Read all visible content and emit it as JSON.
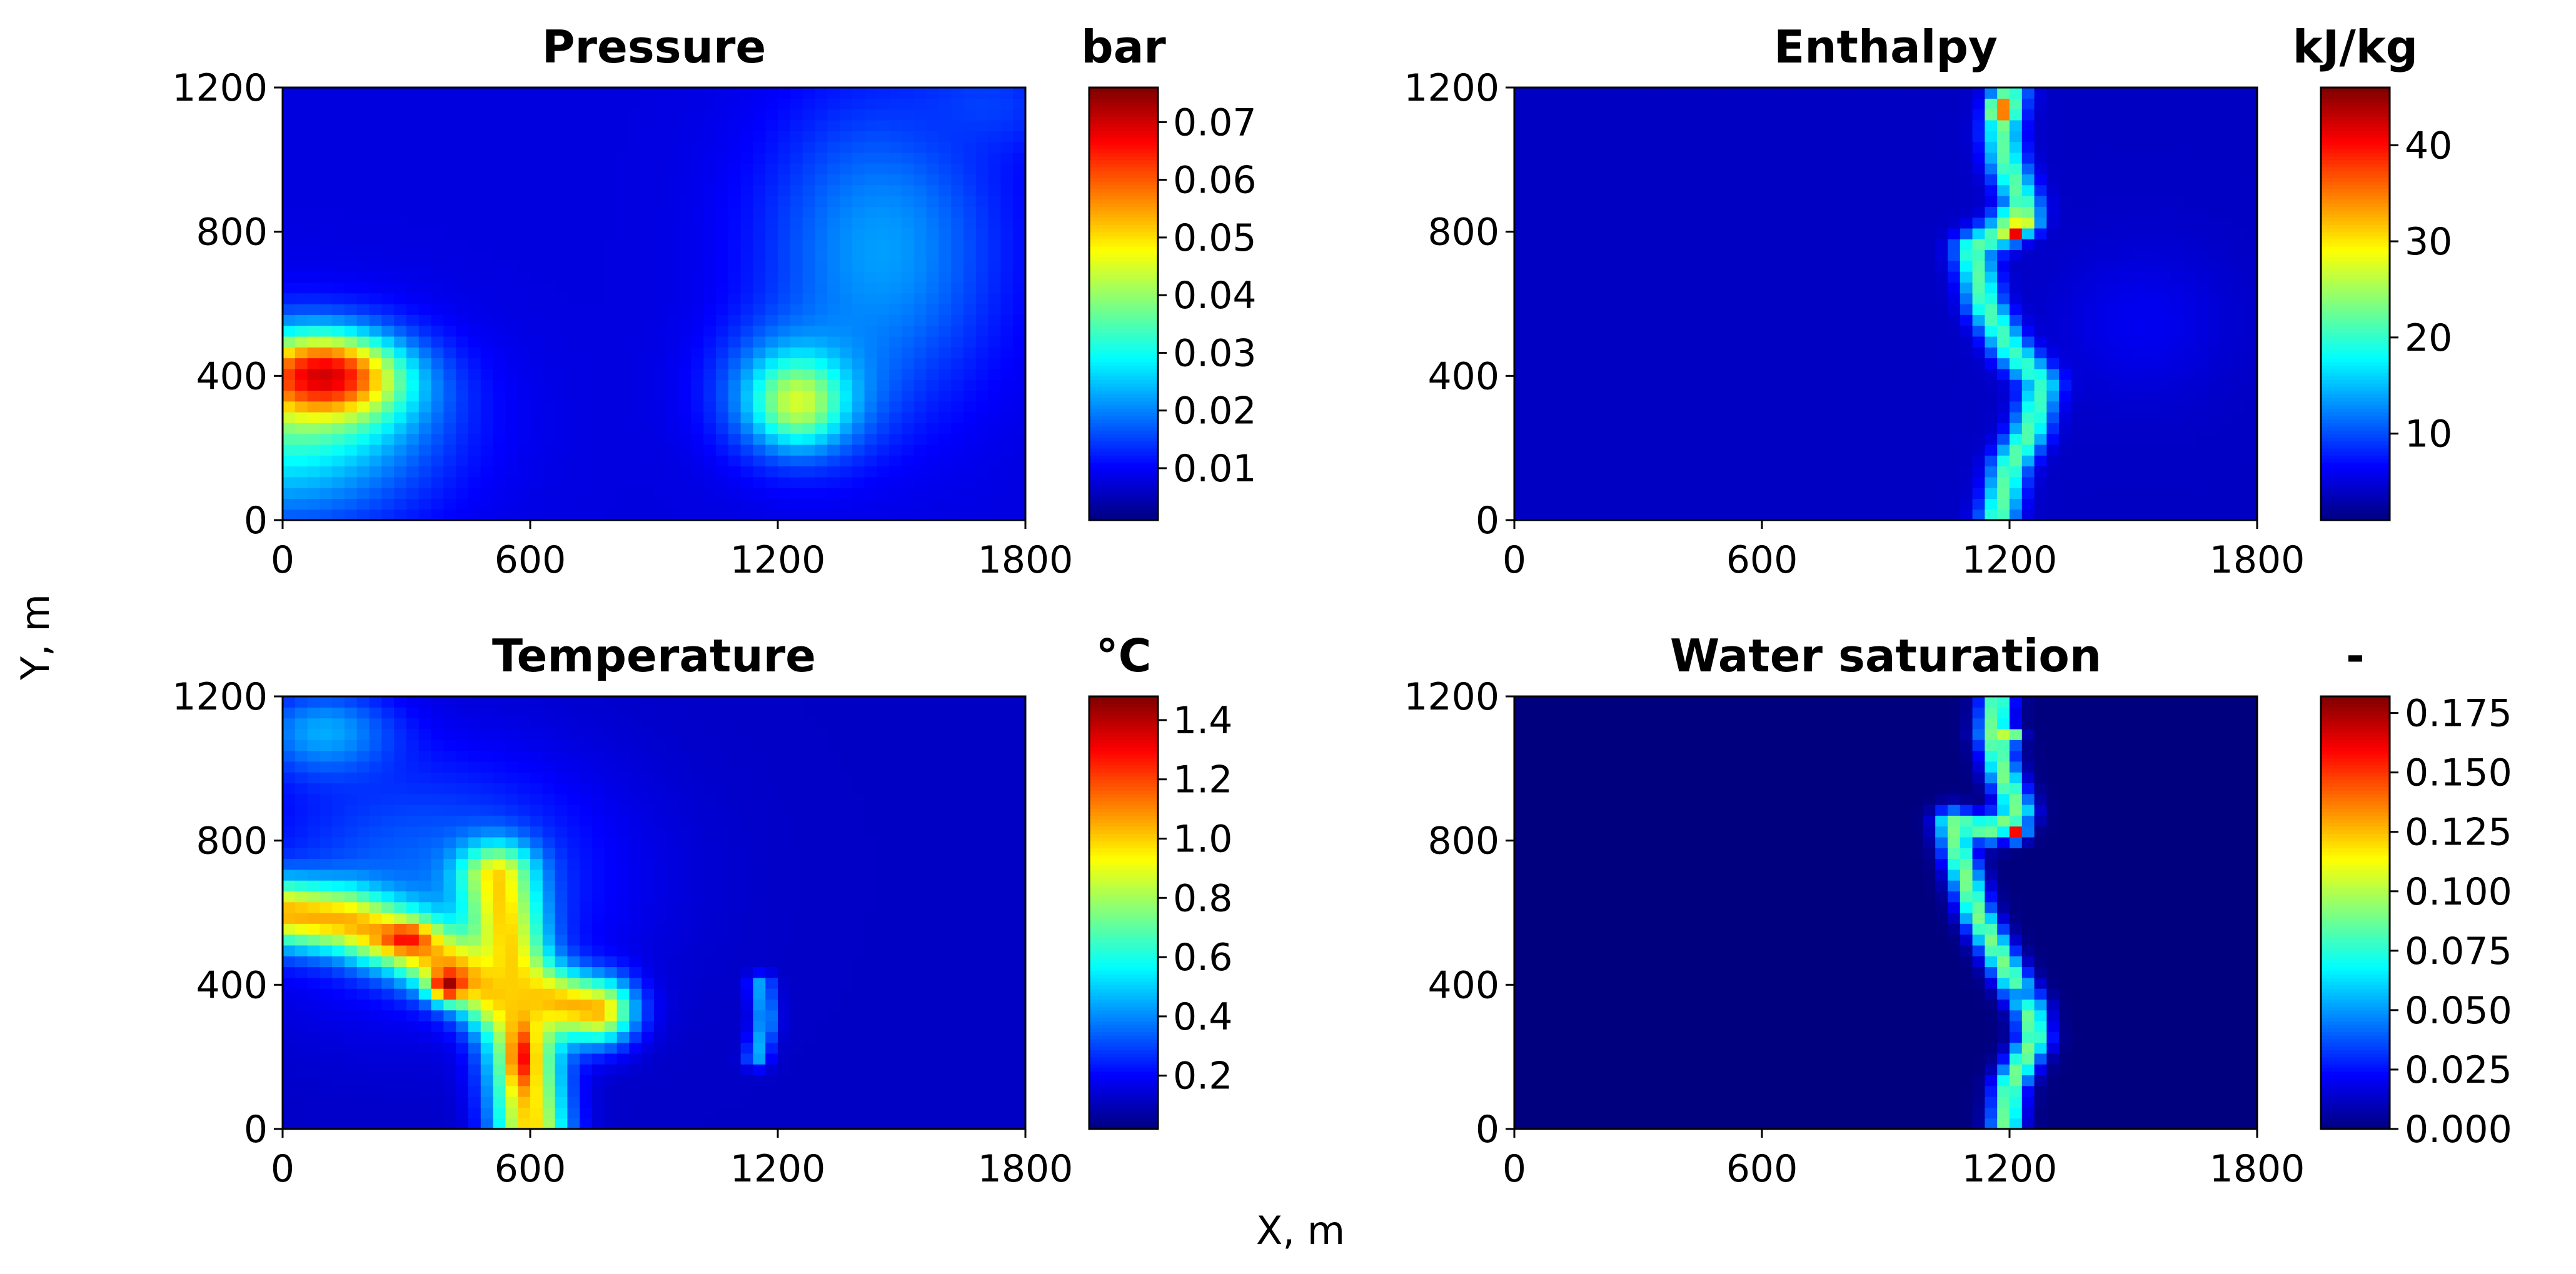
{
  "figure": {
    "global_ylabel": "Y, m",
    "global_xlabel": "X, m"
  },
  "colors": {
    "jet": [
      "#00007f",
      "#0000ff",
      "#007fff",
      "#00ffff",
      "#7fff7f",
      "#ffff00",
      "#ff7f00",
      "#ff0000",
      "#7f0000"
    ],
    "axis": "#000000",
    "background": "#ffffff"
  },
  "chart_data": [
    {
      "type": "heatmap",
      "title": "Pressure",
      "unit": "bar",
      "xlabel": "X, m",
      "ylabel": "Y, m",
      "xlim": [
        0,
        1800
      ],
      "ylim": [
        0,
        1200
      ],
      "xticks": [
        0,
        600,
        1200,
        1800
      ],
      "xtick_labels": [
        "0",
        "600",
        "1200",
        "1800"
      ],
      "yticks": [
        0,
        400,
        800,
        1200
      ],
      "ytick_labels": [
        "0",
        "400",
        "800",
        "1200"
      ],
      "colorbar_range": [
        0.001,
        0.076
      ],
      "colorbar_ticks": [
        0.01,
        0.02,
        0.03,
        0.04,
        0.05,
        0.06,
        0.07
      ],
      "colorbar_tick_labels": [
        "0.01",
        "0.02",
        "0.03",
        "0.04",
        "0.05",
        "0.06",
        "0.07"
      ],
      "background_value": 0.008,
      "features": [
        {
          "kind": "blob",
          "x": 0,
          "y": 250,
          "rx": 520,
          "ry": 380,
          "value": 0.03
        },
        {
          "kind": "blob",
          "x": 80,
          "y": 380,
          "rx": 320,
          "ry": 200,
          "value": 0.05
        },
        {
          "kind": "blob",
          "x": 100,
          "y": 400,
          "rx": 200,
          "ry": 130,
          "value": 0.07
        },
        {
          "kind": "blob",
          "x": 1450,
          "y": 750,
          "rx": 420,
          "ry": 620,
          "value": 0.022
        },
        {
          "kind": "blob",
          "x": 1250,
          "y": 350,
          "rx": 260,
          "ry": 260,
          "value": 0.03
        },
        {
          "kind": "blob",
          "x": 1250,
          "y": 330,
          "rx": 130,
          "ry": 140,
          "value": 0.045
        },
        {
          "kind": "blob",
          "x": 1700,
          "y": 1150,
          "rx": 280,
          "ry": 200,
          "value": 0.015
        }
      ]
    },
    {
      "type": "heatmap",
      "title": "Enthalpy",
      "unit": "kJ/kg",
      "xlabel": "X, m",
      "ylabel": "Y, m",
      "xlim": [
        0,
        1800
      ],
      "ylim": [
        0,
        1200
      ],
      "xticks": [
        0,
        600,
        1200,
        1800
      ],
      "xtick_labels": [
        "0",
        "600",
        "1200",
        "1800"
      ],
      "yticks": [
        0,
        400,
        800,
        1200
      ],
      "ytick_labels": [
        "0",
        "400",
        "800",
        "1200"
      ],
      "colorbar_range": [
        1,
        46
      ],
      "colorbar_ticks": [
        10,
        20,
        30,
        40
      ],
      "colorbar_tick_labels": [
        "10",
        "20",
        "30",
        "40"
      ],
      "background_value": 4,
      "features": [
        {
          "kind": "path",
          "points": [
            [
              1170,
              0
            ],
            [
              1200,
              150
            ],
            [
              1250,
              250
            ],
            [
              1280,
              380
            ],
            [
              1200,
              480
            ],
            [
              1140,
              600
            ],
            [
              1110,
              750
            ],
            [
              1180,
              800
            ],
            [
              1230,
              880
            ],
            [
              1190,
              1000
            ],
            [
              1180,
              1080
            ],
            [
              1200,
              1200
            ]
          ],
          "value": 22,
          "width": 45
        },
        {
          "kind": "blob",
          "x": 1240,
          "y": 830,
          "rx": 50,
          "ry": 50,
          "value": 28
        },
        {
          "kind": "blob",
          "x": 1180,
          "y": 1140,
          "rx": 40,
          "ry": 40,
          "value": 40
        },
        {
          "kind": "blob",
          "x": 1210,
          "y": 800,
          "rx": 30,
          "ry": 30,
          "value": 45
        },
        {
          "kind": "blob",
          "x": 1520,
          "y": 550,
          "rx": 300,
          "ry": 300,
          "value": 6
        }
      ]
    },
    {
      "type": "heatmap",
      "title": "Temperature",
      "unit": "°C",
      "xlabel": "X, m",
      "ylabel": "Y, m",
      "xlim": [
        0,
        1800
      ],
      "ylim": [
        0,
        1200
      ],
      "xticks": [
        0,
        600,
        1200,
        1800
      ],
      "xtick_labels": [
        "0",
        "600",
        "1200",
        "1800"
      ],
      "yticks": [
        0,
        400,
        800,
        1200
      ],
      "ytick_labels": [
        "0",
        "400",
        "800",
        "1200"
      ],
      "colorbar_range": [
        0.02,
        1.48
      ],
      "colorbar_ticks": [
        0.2,
        0.4,
        0.6,
        0.8,
        1.0,
        1.2,
        1.4
      ],
      "colorbar_tick_labels": [
        "0.2",
        "0.4",
        "0.6",
        "0.8",
        "1.0",
        "1.2",
        "1.4"
      ],
      "background_value": 0.12,
      "features": [
        {
          "kind": "blob",
          "x": 350,
          "y": 700,
          "rx": 650,
          "ry": 520,
          "value": 0.35
        },
        {
          "kind": "blob",
          "x": 100,
          "y": 1100,
          "rx": 250,
          "ry": 180,
          "value": 0.45
        },
        {
          "kind": "path",
          "points": [
            [
              0,
              600
            ],
            [
              150,
              580
            ],
            [
              300,
              520
            ],
            [
              420,
              450
            ],
            [
              520,
              380
            ],
            [
              620,
              360
            ],
            [
              760,
              330
            ]
          ],
          "value": 1.05,
          "width": 90
        },
        {
          "kind": "path",
          "points": [
            [
              520,
              700
            ],
            [
              540,
              550
            ],
            [
              560,
              400
            ],
            [
              580,
              250
            ],
            [
              600,
              0
            ]
          ],
          "value": 1.0,
          "width": 90
        },
        {
          "kind": "blob",
          "x": 400,
          "y": 400,
          "rx": 60,
          "ry": 60,
          "value": 1.45
        },
        {
          "kind": "blob",
          "x": 300,
          "y": 530,
          "rx": 80,
          "ry": 50,
          "value": 1.3
        },
        {
          "kind": "blob",
          "x": 580,
          "y": 200,
          "rx": 40,
          "ry": 120,
          "value": 1.3
        },
        {
          "kind": "path",
          "points": [
            [
              1150,
              200
            ],
            [
              1170,
              300
            ],
            [
              1160,
              400
            ]
          ],
          "value": 0.45,
          "width": 30
        }
      ]
    },
    {
      "type": "heatmap",
      "title": "Water saturation",
      "unit": "-",
      "xlabel": "X, m",
      "ylabel": "Y, m",
      "xlim": [
        0,
        1800
      ],
      "ylim": [
        0,
        1200
      ],
      "xticks": [
        0,
        600,
        1200,
        1800
      ],
      "xtick_labels": [
        "0",
        "600",
        "1200",
        "1800"
      ],
      "yticks": [
        0,
        400,
        800,
        1200
      ],
      "ytick_labels": [
        "0",
        "400",
        "800",
        "1200"
      ],
      "colorbar_range": [
        0.0,
        0.182
      ],
      "colorbar_ticks": [
        0.0,
        0.025,
        0.05,
        0.075,
        0.1,
        0.125,
        0.15,
        0.175
      ],
      "colorbar_tick_labels": [
        "0.000",
        "0.025",
        "0.050",
        "0.075",
        "0.100",
        "0.125",
        "0.150",
        "0.175"
      ],
      "background_value": 0.0,
      "features": [
        {
          "kind": "path",
          "points": [
            [
              1190,
              0
            ],
            [
              1200,
              120
            ],
            [
              1260,
              250
            ],
            [
              1250,
              330
            ],
            [
              1190,
              450
            ],
            [
              1120,
              600
            ],
            [
              1080,
              750
            ],
            [
              1060,
              850
            ],
            [
              1150,
              830
            ],
            [
              1220,
              880
            ],
            [
              1180,
              1000
            ],
            [
              1160,
              1100
            ],
            [
              1170,
              1200
            ]
          ],
          "value": 0.09,
          "width": 40
        },
        {
          "kind": "blob",
          "x": 1220,
          "y": 820,
          "rx": 30,
          "ry": 30,
          "value": 0.175
        },
        {
          "kind": "blob",
          "x": 1200,
          "y": 1090,
          "rx": 40,
          "ry": 30,
          "value": 0.12
        },
        {
          "kind": "blob",
          "x": 1230,
          "y": 370,
          "rx": 50,
          "ry": 40,
          "value": 0.04
        }
      ]
    }
  ]
}
